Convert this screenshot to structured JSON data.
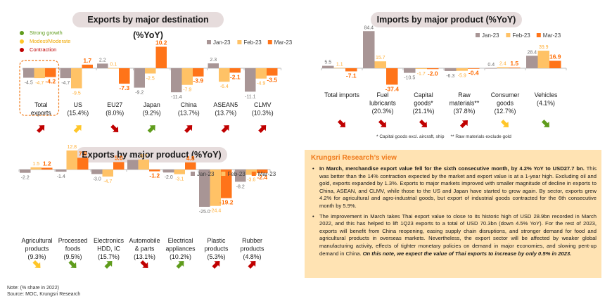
{
  "colors": {
    "jan": "#a89595",
    "feb": "#ffc266",
    "mar": "#ff7419",
    "strong": "#5f9c1c",
    "moderate": "#ffc629",
    "contraction": "#c00000",
    "title_pill": "#e6dcdc",
    "panel_bg": "#ffe3b3",
    "panel_title": "#f07a1a"
  },
  "status_legend": [
    {
      "key": "strong",
      "label": "Strong growth",
      "color": "#5f9c1c"
    },
    {
      "key": "moderate",
      "label": "Modest/Moderate",
      "color": "#ffc629"
    },
    {
      "key": "contraction",
      "label": "Contraction",
      "color": "#c00000"
    }
  ],
  "chart_data": [
    {
      "id": "exports-destination",
      "type": "bar",
      "title": "Exports by major destination (%YoY)",
      "legend": [
        "Jan-23",
        "Feb-23",
        "Mar-23"
      ],
      "legend_position": "top-right",
      "categories": [
        {
          "name": "Total\nexports",
          "share": ""
        },
        {
          "name": "US",
          "share": "(15.4%)"
        },
        {
          "name": "EU27",
          "share": "(8.0%)"
        },
        {
          "name": "Japan",
          "share": "(9.2%)"
        },
        {
          "name": "China",
          "share": "(13.7%)"
        },
        {
          "name": "ASEAN5",
          "share": "(13.7%)"
        },
        {
          "name": "CLMV",
          "share": "(10.3%)"
        }
      ],
      "series": [
        {
          "name": "Jan-23",
          "values": [
            -4.5,
            -4.7,
            2.2,
            -9.2,
            -11.4,
            2.3,
            -11.1
          ]
        },
        {
          "name": "Feb-23",
          "values": [
            -4.7,
            -9.5,
            0.1,
            -2.5,
            -7.9,
            -6.4,
            -4.9
          ]
        },
        {
          "name": "Mar-23",
          "values": [
            -4.2,
            1.7,
            -7.3,
            10.2,
            -3.9,
            -2.1,
            -3.5
          ]
        }
      ],
      "status": [
        {
          "color": "contraction",
          "direction": "up"
        },
        {
          "color": "moderate",
          "direction": "up"
        },
        {
          "color": "contraction",
          "direction": "down"
        },
        {
          "color": "strong",
          "direction": "up"
        },
        {
          "color": "contraction",
          "direction": "up"
        },
        {
          "color": "contraction",
          "direction": "up"
        },
        {
          "color": "contraction",
          "direction": "up"
        }
      ],
      "highlight_category": 0,
      "ylim": [
        -12,
        11
      ]
    },
    {
      "id": "imports-product",
      "type": "bar",
      "title": "Imports by major product (%YoY)",
      "legend": [
        "Jan-23",
        "Feb-23",
        "Mar-23"
      ],
      "legend_position": "top-right",
      "categories": [
        {
          "name": "Total imports",
          "share": ""
        },
        {
          "name": "Fuel\nlubricants",
          "share": "(20.3%)"
        },
        {
          "name": "Capital\ngoods*",
          "share": "(21.1%)"
        },
        {
          "name": "Raw\nmaterials**",
          "share": "(37.8%)"
        },
        {
          "name": "Consumer\ngoods",
          "share": "(12.7%)"
        },
        {
          "name": "Vehicles",
          "share": "(4.1%)"
        }
      ],
      "series": [
        {
          "name": "Jan-23",
          "values": [
            5.5,
            84.4,
            -10.5,
            -6.3,
            0.4,
            28.4
          ]
        },
        {
          "name": "Feb-23",
          "values": [
            1.1,
            15.7,
            -1.7,
            -5.9,
            2.4,
            39.9
          ]
        },
        {
          "name": "Mar-23",
          "values": [
            -7.1,
            -37.4,
            -2.0,
            -0.4,
            1.5,
            16.9
          ]
        }
      ],
      "status": [
        {
          "color": "contraction",
          "direction": "down"
        },
        {
          "color": "contraction",
          "direction": "down"
        },
        {
          "color": "contraction",
          "direction": "down"
        },
        {
          "color": "contraction",
          "direction": "up"
        },
        {
          "color": "moderate",
          "direction": "down"
        },
        {
          "color": "strong",
          "direction": "down"
        }
      ],
      "ylim": [
        -40,
        90
      ]
    },
    {
      "id": "exports-product",
      "type": "bar",
      "title": "Exports by major product (%YoY)",
      "legend": [
        "Jan-23",
        "Feb-23",
        "Mar-23"
      ],
      "legend_position": "top-right",
      "categories": [
        {
          "name": "Agricultural\nproducts",
          "share": "(9.3%)"
        },
        {
          "name": "Processed\nfoods",
          "share": "(9.5%)"
        },
        {
          "name": "Electronics\nHDD, IC",
          "share": "(15.7%)"
        },
        {
          "name": "Automobile\n& parts",
          "share": "(13.1%)"
        },
        {
          "name": "Electrical\nappliances",
          "share": "(10.2%)"
        },
        {
          "name": "Plastic\nproducts",
          "share": "(5.3%)"
        },
        {
          "name": "Rubber\nproducts",
          "share": "(4.8%)"
        }
      ],
      "series": [
        {
          "name": "Jan-23",
          "values": [
            -2.2,
            -1.4,
            -3.0,
            6.5,
            -2.0,
            -25.0,
            -8.2
          ]
        },
        {
          "name": "Feb-23",
          "values": [
            1.5,
            12.8,
            -4.7,
            6.7,
            -3.1,
            -24.4,
            -3.6
          ]
        },
        {
          "name": "Mar-23",
          "values": [
            1.2,
            7.9,
            5.0,
            -1.2,
            4.8,
            -19.2,
            -2.4
          ]
        }
      ],
      "status": [
        {
          "color": "moderate",
          "direction": "down"
        },
        {
          "color": "strong",
          "direction": "down"
        },
        {
          "color": "strong",
          "direction": "up"
        },
        {
          "color": "contraction",
          "direction": "down"
        },
        {
          "color": "strong",
          "direction": "up"
        },
        {
          "color": "contraction",
          "direction": "up"
        },
        {
          "color": "contraction",
          "direction": "up"
        }
      ],
      "ylim": [
        -26,
        14
      ]
    }
  ],
  "footnote": "* Capital goods excl. aircraft, ship     ** Raw materials exclude gold",
  "note": {
    "line1": "Note: (% share in 2022)",
    "line2": "Source: MOC, Krungsri Research"
  },
  "view": {
    "title": "Krungsri Research’s view",
    "bullet": "•",
    "p1_bold": "In March, merchandise export value fell for the sixth consecutive month, by 4.2% YoY to USD27.7 bn.",
    "p1_text": " This was better than the 14% contraction expected by the market and export value is at a 1-year high. Excluding oil and gold, exports expanded by 1.3%. Exports to major markets improved with smaller magnitude of decline in exports to China, ASEAN, and CLMV, while those to the US and Japan have started to grow again. By sector, exports grew 4.2% for agricultural and agro-industrial goods, but export of industrial goods contracted for the 6th consecutive month by 5.9%.",
    "p2_text": "The improvement in March takes Thai export value to close to its historic high of USD 28.9bn recorded in March 2022, and this has helped to lift 1Q23 exports to a total of USD 70.3bn (down 4.5% YoY). For the rest of 2023, exports will benefit from China reopening, easing supply chain disruptions, and stronger demand for food and agricultural products in overseas markets. Nevertheless, the export sector will be affected by weaker global manufacturing activity, effects of tighter monetary policies on demand in major economies, and slowing pent-up demand in China. ",
    "p2_bold_italic": "On this note, we expect the value of Thai exports to increase by only 0.5% in 2023."
  }
}
